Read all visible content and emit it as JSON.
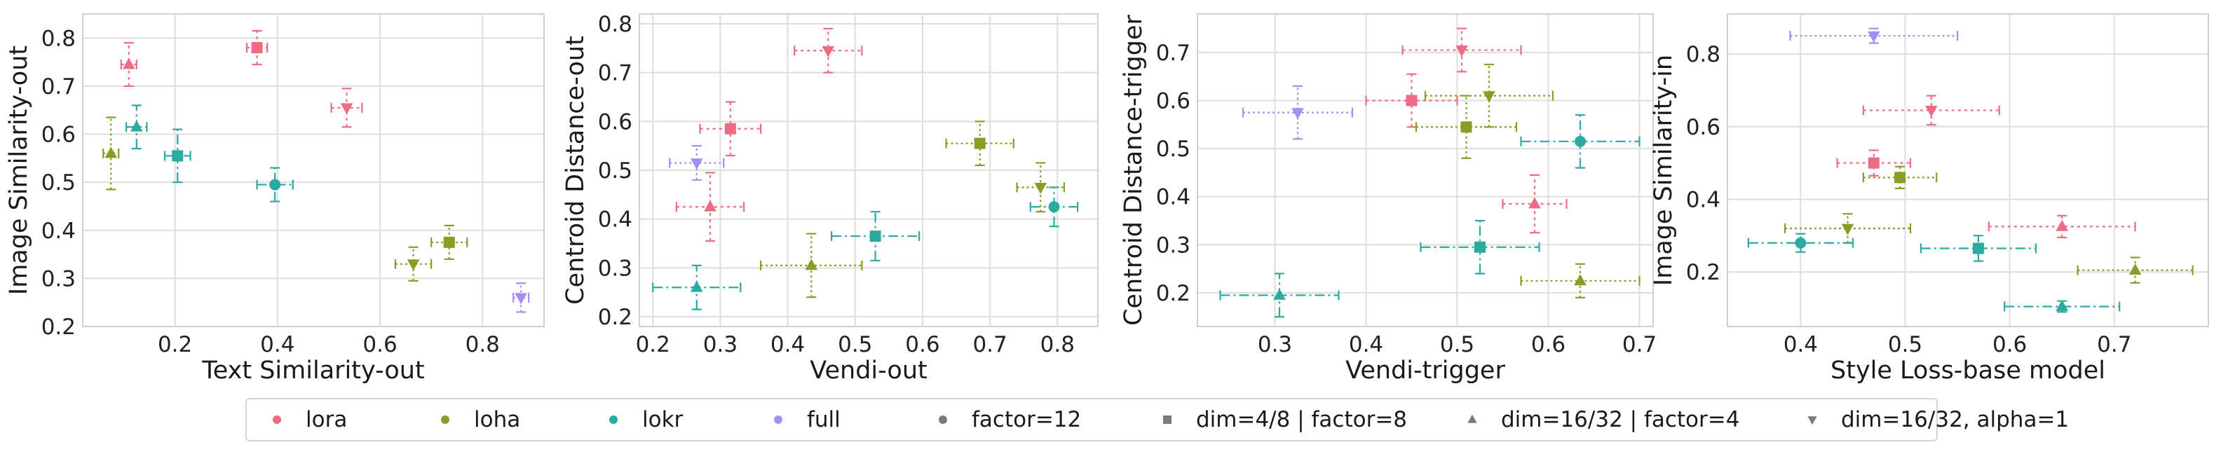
{
  "colors": {
    "lora": "#ee6b85",
    "loha": "#8c9b24",
    "lokr": "#2aaaa0",
    "full": "#a58ef0",
    "neutral": "#7a7a7a"
  },
  "legend": [
    {
      "label": "lora",
      "color": "lora",
      "marker": "circle"
    },
    {
      "label": "loha",
      "color": "loha",
      "marker": "circle"
    },
    {
      "label": "lokr",
      "color": "lokr",
      "marker": "circle"
    },
    {
      "label": "full",
      "color": "full",
      "marker": "circle"
    },
    {
      "label": "factor=12",
      "color": "neutral",
      "marker": "circle"
    },
    {
      "label": "dim=4/8 | factor=8",
      "color": "neutral",
      "marker": "square"
    },
    {
      "label": "dim=16/32 | factor=4",
      "color": "neutral",
      "marker": "triangle-up"
    },
    {
      "label": "dim=16/32, alpha=1",
      "color": "neutral",
      "marker": "triangle-down"
    }
  ],
  "chart_data": [
    {
      "type": "scatter",
      "xlabel": "Text Similarity-out",
      "ylabel": "Image Similarity-out",
      "xlim": [
        0.02,
        0.92
      ],
      "ylim": [
        0.2,
        0.85
      ],
      "xticks": [
        0.2,
        0.4,
        0.6,
        0.8
      ],
      "yticks": [
        0.2,
        0.3,
        0.4,
        0.5,
        0.6,
        0.7,
        0.8
      ],
      "grid": true,
      "points": [
        {
          "series": "lora",
          "marker": "triangle-up",
          "x": 0.11,
          "y": 0.745,
          "xerr": 0.015,
          "yerr": 0.045
        },
        {
          "series": "lora",
          "marker": "square",
          "x": 0.36,
          "y": 0.78,
          "xerr": 0.02,
          "yerr": 0.035
        },
        {
          "series": "lora",
          "marker": "triangle-down",
          "x": 0.535,
          "y": 0.655,
          "xerr": 0.03,
          "yerr": 0.04
        },
        {
          "series": "loha",
          "marker": "triangle-up",
          "x": 0.075,
          "y": 0.56,
          "xerr": 0.015,
          "yerr": 0.075
        },
        {
          "series": "loha",
          "marker": "triangle-down",
          "x": 0.665,
          "y": 0.33,
          "xerr": 0.035,
          "yerr": 0.035
        },
        {
          "series": "loha",
          "marker": "square",
          "x": 0.735,
          "y": 0.375,
          "xerr": 0.035,
          "yerr": 0.035
        },
        {
          "series": "lokr",
          "marker": "triangle-up",
          "x": 0.125,
          "y": 0.615,
          "xerr": 0.02,
          "yerr": 0.045
        },
        {
          "series": "lokr",
          "marker": "square",
          "x": 0.205,
          "y": 0.555,
          "xerr": 0.025,
          "yerr": 0.055
        },
        {
          "series": "lokr",
          "marker": "circle",
          "x": 0.395,
          "y": 0.495,
          "xerr": 0.035,
          "yerr": 0.035
        },
        {
          "series": "full",
          "marker": "triangle-down",
          "x": 0.875,
          "y": 0.26,
          "xerr": 0.015,
          "yerr": 0.03
        }
      ]
    },
    {
      "type": "scatter",
      "xlabel": "Vendi-out",
      "ylabel": "Centroid Distance-out",
      "xlim": [
        0.18,
        0.86
      ],
      "ylim": [
        0.18,
        0.82
      ],
      "xticks": [
        0.2,
        0.3,
        0.4,
        0.5,
        0.6,
        0.7,
        0.8
      ],
      "yticks": [
        0.2,
        0.3,
        0.4,
        0.5,
        0.6,
        0.7,
        0.8
      ],
      "grid": true,
      "points": [
        {
          "series": "lora",
          "marker": "triangle-down",
          "x": 0.46,
          "y": 0.745,
          "xerr": 0.05,
          "yerr": 0.045
        },
        {
          "series": "lora",
          "marker": "square",
          "x": 0.315,
          "y": 0.585,
          "xerr": 0.045,
          "yerr": 0.055
        },
        {
          "series": "lora",
          "marker": "triangle-up",
          "x": 0.285,
          "y": 0.425,
          "xerr": 0.05,
          "yerr": 0.07
        },
        {
          "series": "loha",
          "marker": "square",
          "x": 0.685,
          "y": 0.555,
          "xerr": 0.05,
          "yerr": 0.045
        },
        {
          "series": "loha",
          "marker": "triangle-down",
          "x": 0.775,
          "y": 0.465,
          "xerr": 0.035,
          "yerr": 0.05
        },
        {
          "series": "loha",
          "marker": "triangle-up",
          "x": 0.435,
          "y": 0.305,
          "xerr": 0.075,
          "yerr": 0.065
        },
        {
          "series": "lokr",
          "marker": "square",
          "x": 0.53,
          "y": 0.365,
          "xerr": 0.065,
          "yerr": 0.05
        },
        {
          "series": "lokr",
          "marker": "circle",
          "x": 0.795,
          "y": 0.425,
          "xerr": 0.035,
          "yerr": 0.04
        },
        {
          "series": "lokr",
          "marker": "triangle-up",
          "x": 0.265,
          "y": 0.26,
          "xerr": 0.065,
          "yerr": 0.045
        },
        {
          "series": "full",
          "marker": "triangle-down",
          "x": 0.265,
          "y": 0.515,
          "xerr": 0.04,
          "yerr": 0.035
        }
      ]
    },
    {
      "type": "scatter",
      "xlabel": "Vendi-trigger",
      "ylabel": "Centroid Distance-trigger",
      "xlim": [
        0.215,
        0.715
      ],
      "ylim": [
        0.13,
        0.78
      ],
      "xticks": [
        0.3,
        0.4,
        0.5,
        0.6,
        0.7
      ],
      "yticks": [
        0.2,
        0.3,
        0.4,
        0.5,
        0.6,
        0.7
      ],
      "grid": true,
      "points": [
        {
          "series": "lora",
          "marker": "triangle-down",
          "x": 0.505,
          "y": 0.705,
          "xerr": 0.065,
          "yerr": 0.045
        },
        {
          "series": "lora",
          "marker": "square",
          "x": 0.45,
          "y": 0.6,
          "xerr": 0.05,
          "yerr": 0.055
        },
        {
          "series": "lora",
          "marker": "triangle-up",
          "x": 0.585,
          "y": 0.385,
          "xerr": 0.035,
          "yerr": 0.06
        },
        {
          "series": "loha",
          "marker": "triangle-down",
          "x": 0.535,
          "y": 0.61,
          "xerr": 0.07,
          "yerr": 0.065
        },
        {
          "series": "loha",
          "marker": "square",
          "x": 0.51,
          "y": 0.545,
          "xerr": 0.055,
          "yerr": 0.065
        },
        {
          "series": "loha",
          "marker": "triangle-up",
          "x": 0.635,
          "y": 0.225,
          "xerr": 0.065,
          "yerr": 0.035
        },
        {
          "series": "lokr",
          "marker": "circle",
          "x": 0.635,
          "y": 0.515,
          "xerr": 0.065,
          "yerr": 0.055
        },
        {
          "series": "lokr",
          "marker": "square",
          "x": 0.525,
          "y": 0.295,
          "xerr": 0.065,
          "yerr": 0.055
        },
        {
          "series": "lokr",
          "marker": "triangle-up",
          "x": 0.305,
          "y": 0.195,
          "xerr": 0.065,
          "yerr": 0.045
        },
        {
          "series": "full",
          "marker": "triangle-down",
          "x": 0.325,
          "y": 0.575,
          "xerr": 0.06,
          "yerr": 0.055
        }
      ]
    },
    {
      "type": "scatter",
      "xlabel": "Style Loss-base model",
      "ylabel": "Image Similarity-in",
      "xlim": [
        0.33,
        0.79
      ],
      "ylim": [
        0.05,
        0.91
      ],
      "xticks": [
        0.4,
        0.5,
        0.6,
        0.7
      ],
      "yticks": [
        0.2,
        0.4,
        0.6,
        0.8
      ],
      "grid": true,
      "points": [
        {
          "series": "full",
          "marker": "triangle-down",
          "x": 0.47,
          "y": 0.85,
          "xerr": 0.08,
          "yerr": 0.02
        },
        {
          "series": "lora",
          "marker": "triangle-down",
          "x": 0.525,
          "y": 0.645,
          "xerr": 0.065,
          "yerr": 0.04
        },
        {
          "series": "lora",
          "marker": "square",
          "x": 0.47,
          "y": 0.5,
          "xerr": 0.035,
          "yerr": 0.035
        },
        {
          "series": "lora",
          "marker": "triangle-up",
          "x": 0.65,
          "y": 0.325,
          "xerr": 0.07,
          "yerr": 0.03
        },
        {
          "series": "loha",
          "marker": "square",
          "x": 0.495,
          "y": 0.46,
          "xerr": 0.035,
          "yerr": 0.03
        },
        {
          "series": "loha",
          "marker": "triangle-down",
          "x": 0.445,
          "y": 0.32,
          "xerr": 0.06,
          "yerr": 0.04
        },
        {
          "series": "loha",
          "marker": "triangle-up",
          "x": 0.72,
          "y": 0.205,
          "xerr": 0.055,
          "yerr": 0.035
        },
        {
          "series": "lokr",
          "marker": "circle",
          "x": 0.4,
          "y": 0.28,
          "xerr": 0.05,
          "yerr": 0.025
        },
        {
          "series": "lokr",
          "marker": "square",
          "x": 0.57,
          "y": 0.265,
          "xerr": 0.055,
          "yerr": 0.035
        },
        {
          "series": "lokr",
          "marker": "triangle-up",
          "x": 0.65,
          "y": 0.105,
          "xerr": 0.055,
          "yerr": 0.015
        }
      ]
    }
  ]
}
